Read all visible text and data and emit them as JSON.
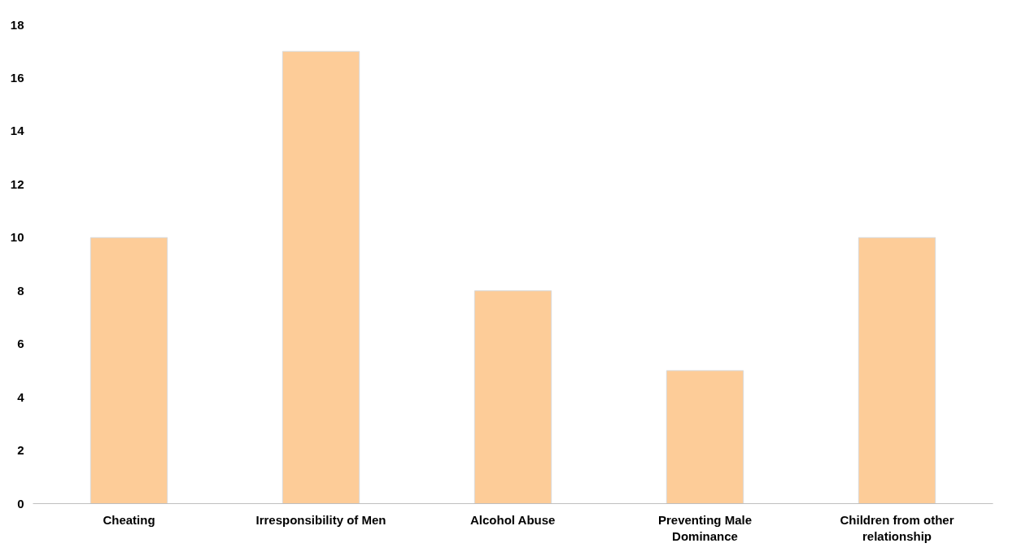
{
  "chart_data": {
    "type": "bar",
    "categories": [
      "Cheating",
      "Irresponsibility of Men",
      "Alcohol Abuse",
      "Preventing Male Dominance",
      "Children from other relationship"
    ],
    "values": [
      10,
      17,
      8,
      5,
      10
    ],
    "color": "#fdcc98",
    "ylim": [
      0,
      18
    ],
    "yticks": [
      0,
      2,
      4,
      6,
      8,
      10,
      12,
      14,
      16,
      18
    ],
    "grid": false
  }
}
